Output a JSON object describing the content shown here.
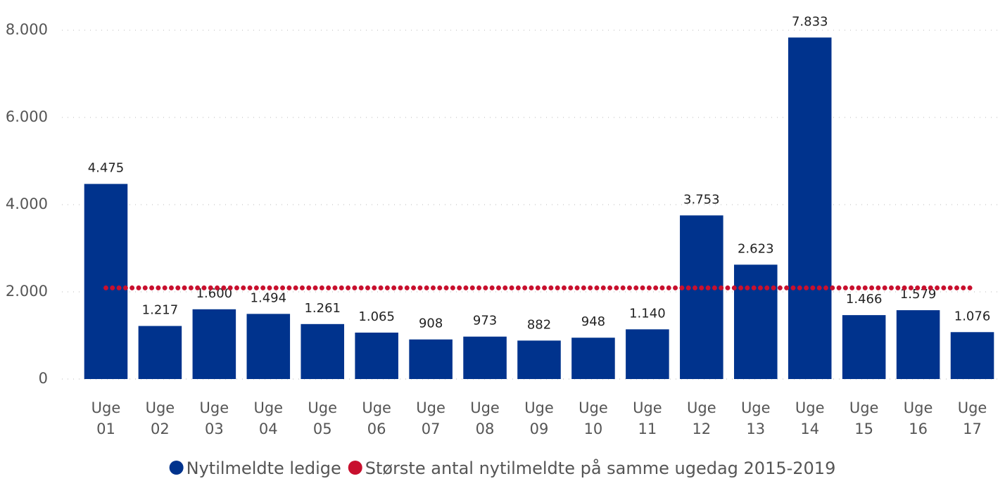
{
  "chart_data": {
    "type": "bar",
    "categories": [
      "Uge 01",
      "Uge 02",
      "Uge 03",
      "Uge 04",
      "Uge 05",
      "Uge 06",
      "Uge 07",
      "Uge 08",
      "Uge 09",
      "Uge 10",
      "Uge 11",
      "Uge 12",
      "Uge 13",
      "Uge 14",
      "Uge 15",
      "Uge 16",
      "Uge 17"
    ],
    "series": [
      {
        "name": "Nytilmeldte ledige",
        "color": "#00338d",
        "type": "bar",
        "values": [
          4475,
          1217,
          1600,
          1494,
          1261,
          1065,
          908,
          973,
          882,
          948,
          1140,
          3753,
          2623,
          7833,
          1466,
          1579,
          1076
        ],
        "value_labels": [
          "4.475",
          "1.217",
          "1.600",
          "1.494",
          "1.261",
          "1.065",
          "908",
          "973",
          "882",
          "948",
          "1.140",
          "3.753",
          "2.623",
          "7.833",
          "1.466",
          "1.579",
          "1.076"
        ]
      },
      {
        "name": "Største antal nytilmeldte på samme ugedag 2015-2019",
        "color": "#c8102e",
        "type": "line",
        "values": [
          2090,
          2090,
          2090,
          2090,
          2090,
          2090,
          2090,
          2090,
          2090,
          2090,
          2090,
          2090,
          2090,
          2090,
          2090,
          2090,
          2090
        ]
      }
    ],
    "ylim": [
      0,
      8000
    ],
    "yticks": [
      {
        "value": 0,
        "label": "0"
      },
      {
        "value": 2000,
        "label": "2.000"
      },
      {
        "value": 4000,
        "label": "4.000"
      },
      {
        "value": 6000,
        "label": "6.000"
      },
      {
        "value": 8000,
        "label": "8.000"
      }
    ],
    "grid": true,
    "legend": "bottom"
  }
}
